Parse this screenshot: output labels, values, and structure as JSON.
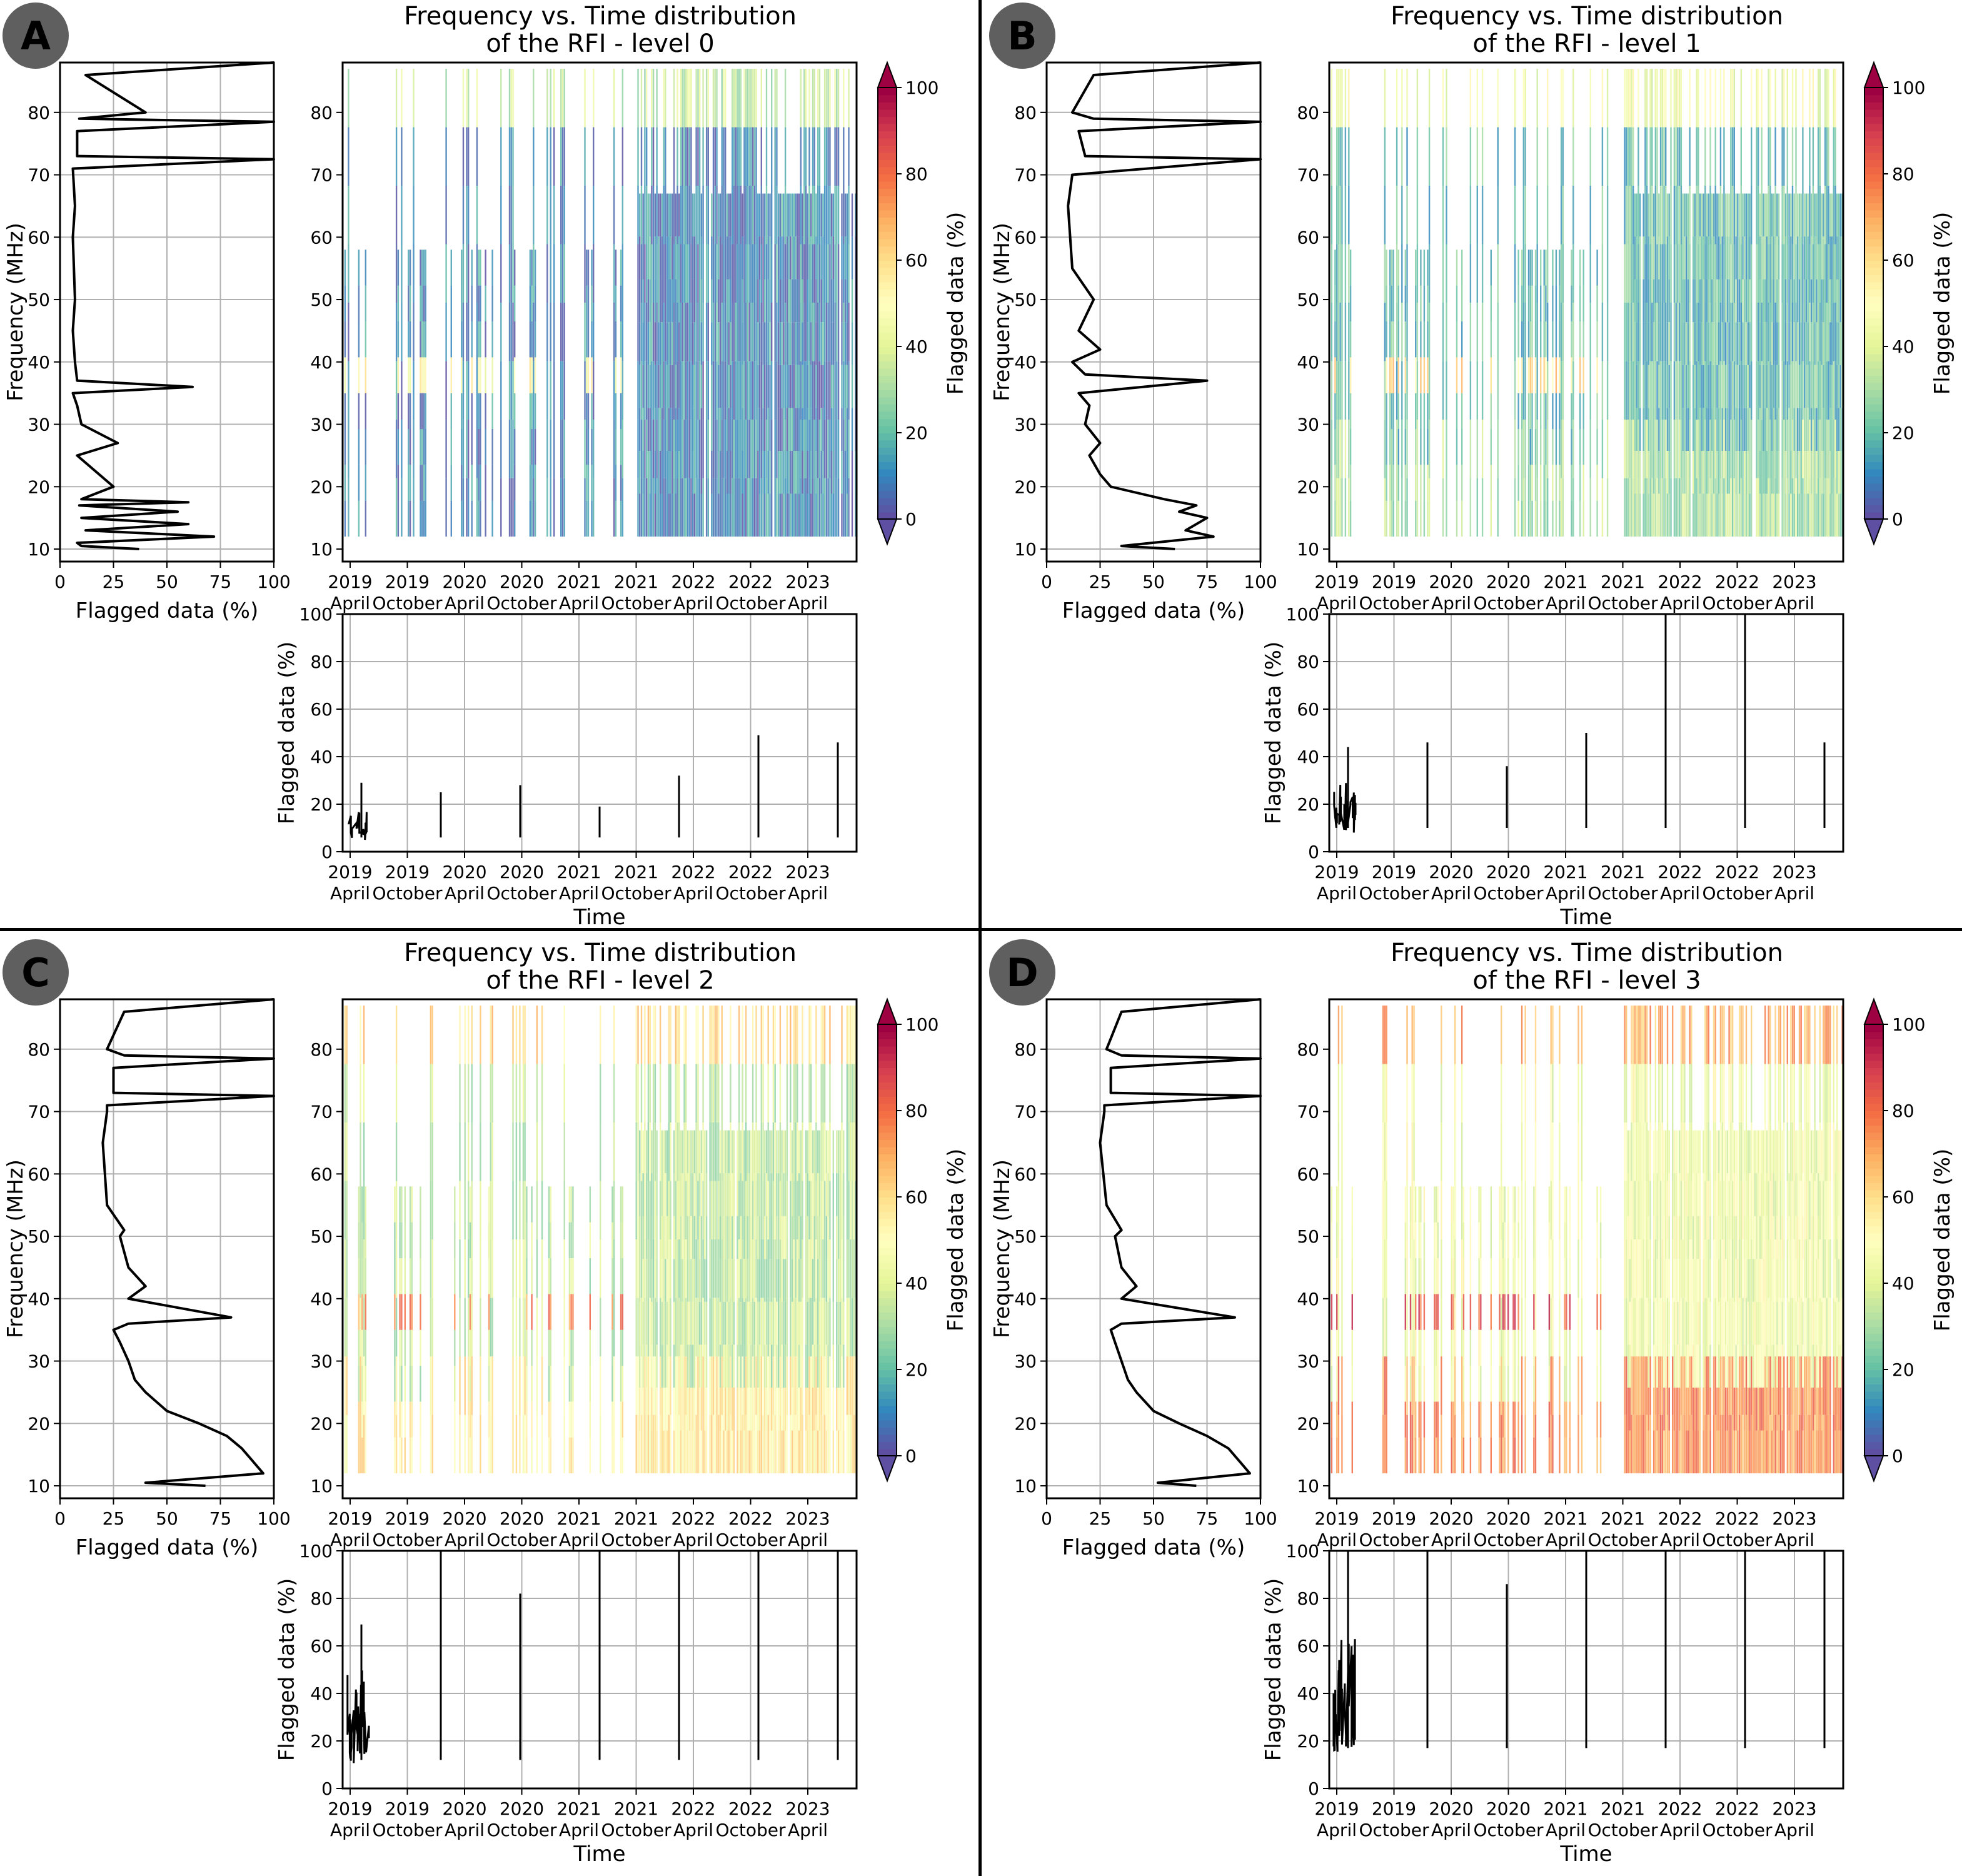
{
  "figure": {
    "panels": [
      {
        "label": "A",
        "title_line1": "Frequency vs. Time distribution",
        "title_line2": "of the RFI - level 0",
        "level": 0
      },
      {
        "label": "B",
        "title_line1": "Frequency vs. Time distribution",
        "title_line2": "of the RFI - level 1",
        "level": 1
      },
      {
        "label": "C",
        "title_line1": "Frequency vs. Time distribution",
        "title_line2": "of the RFI - level 2",
        "level": 2
      },
      {
        "label": "D",
        "title_line1": "Frequency vs. Time distribution",
        "title_line2": "of the RFI - level 3",
        "level": 3
      }
    ]
  },
  "chart_data": [
    {
      "type": "line",
      "panel": "A",
      "subplot": "frequency-profile",
      "xlabel": "Flagged data (%)",
      "ylabel": "Frequency (MHz)",
      "xlim": [
        0,
        100
      ],
      "ylim": [
        8,
        88
      ],
      "xticks": [
        "0",
        "25",
        "50",
        "75",
        "100"
      ],
      "yticks": [
        "10",
        "20",
        "30",
        "40",
        "50",
        "60",
        "70",
        "80"
      ],
      "grid": true,
      "series": [
        {
          "name": "profile",
          "x": [
            37,
            10,
            8,
            72,
            12,
            60,
            10,
            55,
            9,
            60,
            10,
            25,
            8,
            27,
            10,
            8,
            6,
            62,
            8,
            7,
            6,
            7,
            6,
            7,
            6,
            100,
            8,
            8,
            100,
            9,
            40,
            12,
            100
          ],
          "y": [
            10,
            10.5,
            11,
            12,
            13,
            14,
            15,
            16,
            17,
            17.5,
            18,
            20,
            25,
            27,
            30,
            33,
            35,
            36,
            37,
            40,
            45,
            50,
            60,
            65,
            71,
            72.5,
            73,
            77,
            78.5,
            79,
            80,
            86,
            88
          ]
        }
      ]
    },
    {
      "type": "heatmap",
      "panel": "A",
      "subplot": "spectrogram",
      "ylabel": "Frequency (MHz)",
      "ylim": [
        8,
        88
      ],
      "yticks": [
        "10",
        "20",
        "30",
        "40",
        "50",
        "60",
        "70",
        "80"
      ],
      "xticks_year": [
        "2019",
        "2019",
        "2020",
        "2020",
        "2021",
        "2021",
        "2022",
        "2022",
        "2023"
      ],
      "xticks_month": [
        "April",
        "October",
        "April",
        "October",
        "April",
        "October",
        "April",
        "October",
        "April"
      ],
      "colorbar": {
        "label": "Flagged data (%)",
        "ticks": [
          "0",
          "20",
          "40",
          "60",
          "80",
          "100"
        ],
        "range": [
          0,
          100
        ],
        "colormap": "Spectral_r"
      },
      "mean_level_percent": 10
    },
    {
      "type": "line",
      "panel": "A",
      "subplot": "time-series",
      "xlabel": "Time",
      "ylabel": "Flagged data (%)",
      "ylim": [
        0,
        100
      ],
      "yticks": [
        "0",
        "20",
        "40",
        "60",
        "80",
        "100"
      ],
      "xticks_year": [
        "2019",
        "2019",
        "2020",
        "2020",
        "2021",
        "2021",
        "2022",
        "2022",
        "2023"
      ],
      "xticks_month": [
        "April",
        "October",
        "April",
        "October",
        "April",
        "October",
        "April",
        "October",
        "April"
      ],
      "grid": true,
      "typical_range": [
        4,
        20
      ],
      "peaks": [
        29,
        25,
        28,
        19,
        32,
        49,
        46
      ]
    },
    {
      "type": "line",
      "panel": "B",
      "subplot": "frequency-profile",
      "xlabel": "Flagged data (%)",
      "ylabel": "Frequency (MHz)",
      "xlim": [
        0,
        100
      ],
      "ylim": [
        8,
        88
      ],
      "xticks": [
        "0",
        "25",
        "50",
        "75",
        "100"
      ],
      "yticks": [
        "10",
        "20",
        "30",
        "40",
        "50",
        "60",
        "70",
        "80"
      ],
      "grid": true,
      "series": [
        {
          "name": "profile",
          "x": [
            60,
            35,
            78,
            65,
            75,
            62,
            70,
            55,
            30,
            25,
            20,
            25,
            18,
            20,
            15,
            45,
            75,
            18,
            12,
            25,
            15,
            22,
            12,
            10,
            12,
            100,
            18,
            15,
            100,
            22,
            12,
            22,
            100
          ],
          "y": [
            10,
            10.5,
            12,
            13,
            15,
            16,
            17,
            18,
            20,
            22,
            25,
            27,
            30,
            33,
            35,
            36,
            37,
            38,
            40,
            42,
            45,
            50,
            55,
            65,
            70,
            72.5,
            73,
            77,
            78.5,
            79,
            80,
            86,
            88
          ]
        }
      ]
    },
    {
      "type": "heatmap",
      "panel": "B",
      "subplot": "spectrogram",
      "ylabel": "Frequency (MHz)",
      "ylim": [
        8,
        88
      ],
      "yticks": [
        "10",
        "20",
        "30",
        "40",
        "50",
        "60",
        "70",
        "80"
      ],
      "xticks_year": [
        "2019",
        "2019",
        "2020",
        "2020",
        "2021",
        "2021",
        "2022",
        "2022",
        "2023"
      ],
      "xticks_month": [
        "April",
        "October",
        "April",
        "October",
        "April",
        "October",
        "April",
        "October",
        "April"
      ],
      "colorbar": {
        "label": "Flagged data (%)",
        "ticks": [
          "0",
          "20",
          "40",
          "60",
          "80",
          "100"
        ],
        "range": [
          0,
          100
        ],
        "colormap": "Spectral_r"
      },
      "mean_level_percent": 20
    },
    {
      "type": "line",
      "panel": "B",
      "subplot": "time-series",
      "xlabel": "Time",
      "ylabel": "Flagged data (%)",
      "ylim": [
        0,
        100
      ],
      "yticks": [
        "0",
        "20",
        "40",
        "60",
        "80",
        "100"
      ],
      "xticks_year": [
        "2019",
        "2019",
        "2020",
        "2020",
        "2021",
        "2021",
        "2022",
        "2022",
        "2023"
      ],
      "xticks_month": [
        "April",
        "October",
        "April",
        "October",
        "April",
        "October",
        "April",
        "October",
        "April"
      ],
      "grid": true,
      "typical_range": [
        8,
        35
      ],
      "peaks": [
        44,
        46,
        36,
        50,
        100,
        100,
        46
      ]
    },
    {
      "type": "line",
      "panel": "C",
      "subplot": "frequency-profile",
      "xlabel": "Flagged data (%)",
      "ylabel": "Frequency (MHz)",
      "xlim": [
        0,
        100
      ],
      "ylim": [
        8,
        88
      ],
      "xticks": [
        "0",
        "25",
        "50",
        "75",
        "100"
      ],
      "yticks": [
        "10",
        "20",
        "30",
        "40",
        "50",
        "60",
        "70",
        "80"
      ],
      "grid": true,
      "series": [
        {
          "name": "profile",
          "x": [
            68,
            40,
            95,
            90,
            85,
            78,
            65,
            50,
            40,
            35,
            32,
            28,
            25,
            32,
            80,
            32,
            40,
            32,
            28,
            30,
            22,
            20,
            22,
            22,
            100,
            25,
            25,
            100,
            30,
            22,
            30,
            100
          ],
          "y": [
            10,
            10.5,
            12,
            14,
            16,
            18,
            20,
            22,
            25,
            27,
            30,
            33,
            35,
            36,
            37,
            40,
            42,
            45,
            50,
            51,
            55,
            65,
            70,
            71,
            72.5,
            73,
            77,
            78.5,
            79,
            80,
            86,
            88
          ]
        }
      ]
    },
    {
      "type": "heatmap",
      "panel": "C",
      "subplot": "spectrogram",
      "ylabel": "Frequency (MHz)",
      "ylim": [
        8,
        88
      ],
      "yticks": [
        "10",
        "20",
        "30",
        "40",
        "50",
        "60",
        "70",
        "80"
      ],
      "xticks_year": [
        "2019",
        "2019",
        "2020",
        "2020",
        "2021",
        "2021",
        "2022",
        "2022",
        "2023"
      ],
      "xticks_month": [
        "April",
        "October",
        "April",
        "October",
        "April",
        "October",
        "April",
        "October",
        "April"
      ],
      "colorbar": {
        "label": "Flagged data (%)",
        "ticks": [
          "0",
          "20",
          "40",
          "60",
          "80",
          "100"
        ],
        "range": [
          0,
          100
        ],
        "colormap": "Spectral_r"
      },
      "mean_level_percent": 35
    },
    {
      "type": "line",
      "panel": "C",
      "subplot": "time-series",
      "xlabel": "Time",
      "ylabel": "Flagged data (%)",
      "ylim": [
        0,
        100
      ],
      "yticks": [
        "0",
        "20",
        "40",
        "60",
        "80",
        "100"
      ],
      "xticks_year": [
        "2019",
        "2019",
        "2020",
        "2020",
        "2021",
        "2021",
        "2022",
        "2022",
        "2023"
      ],
      "xticks_month": [
        "April",
        "October",
        "April",
        "October",
        "April",
        "October",
        "April",
        "October",
        "April"
      ],
      "grid": true,
      "typical_range": [
        10,
        60
      ],
      "peaks": [
        69,
        100,
        82,
        100,
        100,
        100,
        100
      ]
    },
    {
      "type": "line",
      "panel": "D",
      "subplot": "frequency-profile",
      "xlabel": "Flagged data (%)",
      "ylabel": "Frequency (MHz)",
      "xlim": [
        0,
        100
      ],
      "ylim": [
        8,
        88
      ],
      "xticks": [
        "0",
        "25",
        "50",
        "75",
        "100"
      ],
      "yticks": [
        "10",
        "20",
        "30",
        "40",
        "50",
        "60",
        "70",
        "80"
      ],
      "grid": true,
      "series": [
        {
          "name": "profile",
          "x": [
            70,
            52,
            95,
            90,
            85,
            75,
            62,
            50,
            42,
            38,
            35,
            32,
            30,
            35,
            88,
            35,
            42,
            35,
            32,
            35,
            28,
            25,
            27,
            27,
            100,
            30,
            30,
            100,
            35,
            28,
            35,
            100
          ],
          "y": [
            10,
            10.5,
            12,
            14,
            16,
            18,
            20,
            22,
            25,
            27,
            30,
            33,
            35,
            36,
            37,
            40,
            42,
            45,
            50,
            51,
            55,
            65,
            70,
            71,
            72.5,
            73,
            77,
            78.5,
            79,
            80,
            86,
            88
          ]
        }
      ]
    },
    {
      "type": "heatmap",
      "panel": "D",
      "subplot": "spectrogram",
      "ylabel": "Frequency (MHz)",
      "ylim": [
        8,
        88
      ],
      "yticks": [
        "10",
        "20",
        "30",
        "40",
        "50",
        "60",
        "70",
        "80"
      ],
      "xticks_year": [
        "2019",
        "2019",
        "2020",
        "2020",
        "2021",
        "2021",
        "2022",
        "2022",
        "2023"
      ],
      "xticks_month": [
        "April",
        "October",
        "April",
        "October",
        "April",
        "October",
        "April",
        "October",
        "April"
      ],
      "colorbar": {
        "label": "Flagged data (%)",
        "ticks": [
          "0",
          "20",
          "40",
          "60",
          "80",
          "100"
        ],
        "range": [
          0,
          100
        ],
        "colormap": "Spectral_r"
      },
      "mean_level_percent": 45
    },
    {
      "type": "line",
      "panel": "D",
      "subplot": "time-series",
      "xlabel": "Time",
      "ylabel": "Flagged data (%)",
      "ylim": [
        0,
        100
      ],
      "yticks": [
        "0",
        "20",
        "40",
        "60",
        "80",
        "100"
      ],
      "xticks_year": [
        "2019",
        "2019",
        "2020",
        "2020",
        "2021",
        "2021",
        "2022",
        "2022",
        "2023"
      ],
      "xticks_month": [
        "April",
        "October",
        "April",
        "October",
        "April",
        "October",
        "April",
        "October",
        "April"
      ],
      "grid": true,
      "typical_range": [
        15,
        75
      ],
      "peaks": [
        100,
        100,
        86,
        100,
        100,
        100,
        100
      ]
    }
  ]
}
